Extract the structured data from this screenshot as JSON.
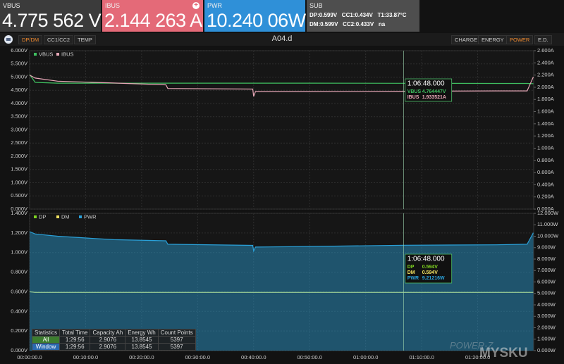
{
  "header": {
    "panels": [
      {
        "label": "VBUS",
        "value": "4.775 562 V"
      },
      {
        "label": "IBUS",
        "value": "2.144 263 A"
      },
      {
        "label": "PWR",
        "value": "10.240 06W"
      }
    ],
    "sub": {
      "label": "SUB",
      "lines": [
        "DP:0.599V   CC1:0.434V   T1:33.87°C",
        "DM:0.599V   CC2:0.433V   na"
      ]
    }
  },
  "toolbar": {
    "left_tabs": [
      "DP/DM",
      "CC1/CC2",
      "TEMP"
    ],
    "title": "A04.d",
    "right_tabs": [
      "CHARGE",
      "ENERGY",
      "POWER",
      "E.D."
    ]
  },
  "chart_data": [
    {
      "type": "line",
      "x": [
        0,
        60,
        300,
        900,
        1460,
        1480,
        2390,
        2400,
        2420,
        3000,
        4008,
        5000,
        5330,
        5396
      ],
      "series": [
        {
          "name": "VBUS",
          "color": "#3fc060",
          "values": [
            5.1,
            4.8,
            4.77,
            4.77,
            4.77,
            4.77,
            4.77,
            4.77,
            4.77,
            4.77,
            4.764,
            4.76,
            4.76,
            4.75
          ]
        },
        {
          "name": "IBUS",
          "color": "#e8a8b8",
          "axis": "y2",
          "values": [
            2.2,
            2.15,
            2.1,
            2.07,
            2.04,
            1.98,
            1.97,
            1.85,
            1.93,
            1.93,
            1.934,
            1.94,
            1.94,
            2.17
          ]
        }
      ],
      "xlim": [
        0,
        5400
      ],
      "ylim": [
        0,
        6
      ],
      "yticks": [
        {
          "value": 0,
          "label": "0.000V"
        },
        {
          "value": 0.5,
          "label": "0.500V"
        },
        {
          "value": 1,
          "label": "1.000V"
        },
        {
          "value": 1.5,
          "label": "1.500V"
        },
        {
          "value": 2,
          "label": "2.000V"
        },
        {
          "value": 2.5,
          "label": "2.500V"
        },
        {
          "value": 3,
          "label": "3.000V"
        },
        {
          "value": 3.5,
          "label": "3.500V"
        },
        {
          "value": 4,
          "label": "4.000V"
        },
        {
          "value": 4.5,
          "label": "4.500V"
        },
        {
          "value": 5,
          "label": "5.000V"
        },
        {
          "value": 5.5,
          "label": "5.500V"
        },
        {
          "value": 6,
          "label": "6.000V"
        }
      ],
      "y2lim": [
        0,
        2.6
      ],
      "y2ticks": [
        {
          "value": 0,
          "label": "0.000A"
        },
        {
          "value": 0.2,
          "label": "0.200A"
        },
        {
          "value": 0.4,
          "label": "0.400A"
        },
        {
          "value": 0.6,
          "label": "0.600A"
        },
        {
          "value": 0.8,
          "label": "0.800A"
        },
        {
          "value": 1,
          "label": "1.000A"
        },
        {
          "value": 1.2,
          "label": "1.200A"
        },
        {
          "value": 1.4,
          "label": "1.400A"
        },
        {
          "value": 1.6,
          "label": "1.600A"
        },
        {
          "value": 1.8,
          "label": "1.800A"
        },
        {
          "value": 2,
          "label": "2.000A"
        },
        {
          "value": 2.2,
          "label": "2.200A"
        },
        {
          "value": 2.4,
          "label": "2.400A"
        },
        {
          "value": 2.6,
          "label": "2.600A"
        }
      ],
      "cursor_x": 4008,
      "cursor_label": "1:06:48.000",
      "readout_values": [
        "4.764447V",
        "1.933521A"
      ]
    },
    {
      "type": "area",
      "x": [
        0,
        60,
        300,
        900,
        1460,
        1480,
        2390,
        2400,
        2420,
        3000,
        4008,
        5000,
        5330,
        5396
      ],
      "series": [
        {
          "name": "DP",
          "color": "#7ed321",
          "values": [
            0.6,
            0.594,
            0.594,
            0.594,
            0.594,
            0.594,
            0.594,
            0.594,
            0.594,
            0.594,
            0.594,
            0.594,
            0.594,
            0.594
          ]
        },
        {
          "name": "DM",
          "color": "#f0e060",
          "values": [
            0.6,
            0.594,
            0.594,
            0.594,
            0.594,
            0.594,
            0.594,
            0.594,
            0.594,
            0.594,
            0.594,
            0.594,
            0.594,
            0.594
          ]
        },
        {
          "name": "PWR",
          "color": "#2aa0d8",
          "axis": "y2",
          "values": [
            10.4,
            10.2,
            10.0,
            9.7,
            9.6,
            9.3,
            9.2,
            8.7,
            9.05,
            9.1,
            9.212,
            9.25,
            9.3,
            10.3
          ]
        }
      ],
      "xlim": [
        0,
        5400
      ],
      "xticks": [
        {
          "value": 0,
          "label": "00:00:00.0"
        },
        {
          "value": 600,
          "label": "00:10:00.0"
        },
        {
          "value": 1200,
          "label": "00:20:00.0"
        },
        {
          "value": 1800,
          "label": "00:30:00.0"
        },
        {
          "value": 2400,
          "label": "00:40:00.0"
        },
        {
          "value": 3000,
          "label": "00:50:00.0"
        },
        {
          "value": 3600,
          "label": "01:00:00.0"
        },
        {
          "value": 4200,
          "label": "01:10:00.0"
        },
        {
          "value": 4800,
          "label": "01:20:00.0"
        }
      ],
      "ylim": [
        0,
        1.4
      ],
      "yticks": [
        {
          "value": 0,
          "label": "0.000V"
        },
        {
          "value": 0.2,
          "label": "0.200V"
        },
        {
          "value": 0.4,
          "label": "0.400V"
        },
        {
          "value": 0.6,
          "label": "0.600V"
        },
        {
          "value": 0.8,
          "label": "0.800V"
        },
        {
          "value": 1,
          "label": "1.000V"
        },
        {
          "value": 1.2,
          "label": "1.200V"
        },
        {
          "value": 1.4,
          "label": "1.400V"
        }
      ],
      "y2lim": [
        0,
        12
      ],
      "y2ticks": [
        {
          "value": 0,
          "label": "0.000W"
        },
        {
          "value": 1,
          "label": "1.000W"
        },
        {
          "value": 2,
          "label": "2.000W"
        },
        {
          "value": 3,
          "label": "3.000W"
        },
        {
          "value": 4,
          "label": "4.000W"
        },
        {
          "value": 5,
          "label": "5.000W"
        },
        {
          "value": 6,
          "label": "6.000W"
        },
        {
          "value": 7,
          "label": "7.000W"
        },
        {
          "value": 8,
          "label": "8.000W"
        },
        {
          "value": 9,
          "label": "9.000W"
        },
        {
          "value": 10,
          "label": "10.000W"
        },
        {
          "value": 11,
          "label": "11.000W"
        },
        {
          "value": 12,
          "label": "12.000W"
        }
      ],
      "cursor_x": 4008,
      "cursor_label": "1:06:48.000",
      "readout_values": [
        "0.594V",
        "0.594V",
        "9.21216W"
      ]
    }
  ],
  "statistics": {
    "header": [
      "Statistics",
      "Total Time",
      "Capacity Ah",
      "Energy Wh",
      "Count Points"
    ],
    "rows": [
      [
        "All",
        "1:29:56",
        "2.9076",
        "13.8545",
        "5397"
      ],
      [
        "Window",
        "1:29:56",
        "2.9076",
        "13.8545",
        "5397"
      ]
    ]
  },
  "watermark": [
    "POWER-Z",
    "MYSKU"
  ]
}
